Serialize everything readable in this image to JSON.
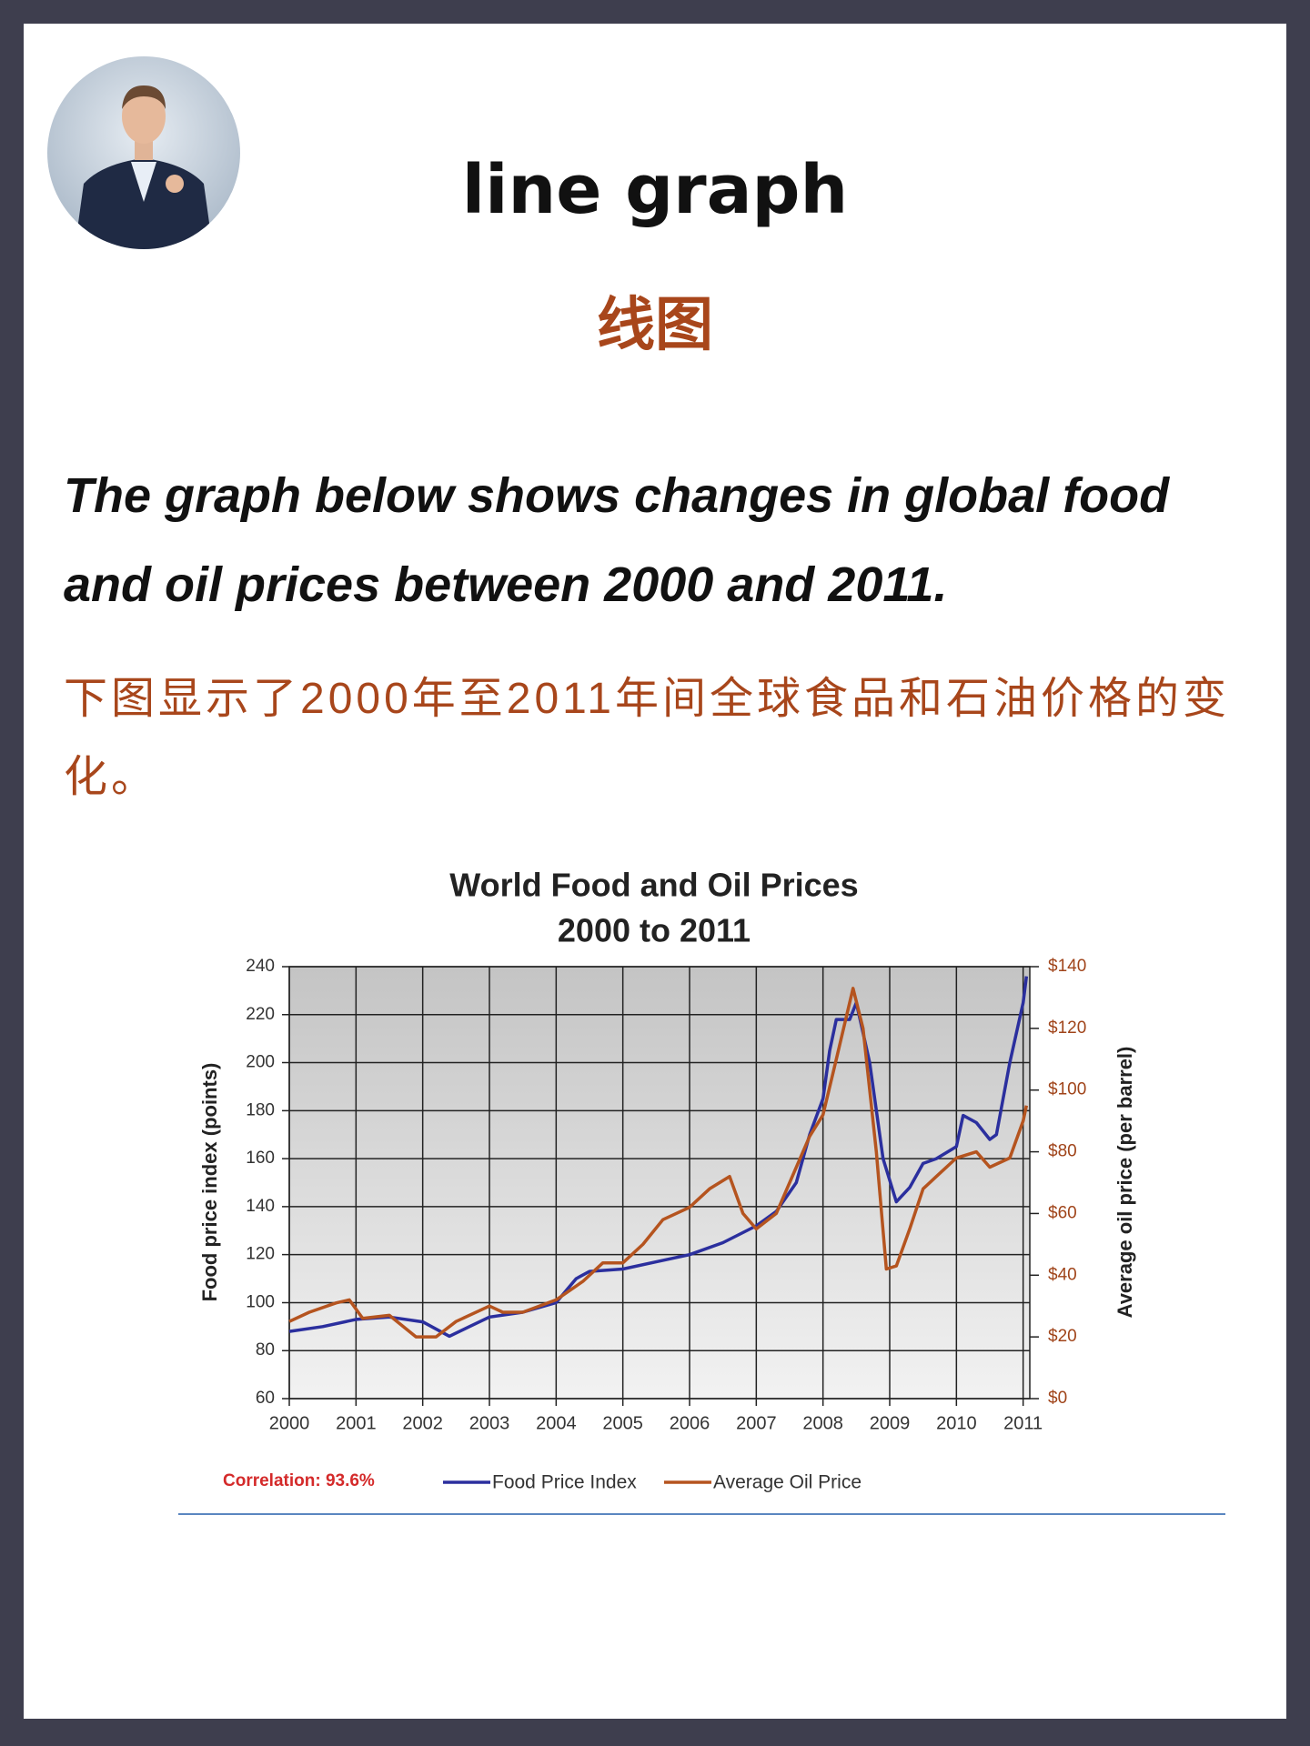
{
  "header": {
    "title": "line graph",
    "subtitle": "线图"
  },
  "intro": {
    "english": "The graph below shows changes in global food and oil prices between 2000 and 2011.",
    "chinese": "下图显示了2000年至2011年间全球食品和石油价格的变化。"
  },
  "chart_data": {
    "type": "line",
    "title": "World Food and Oil Prices",
    "subtitle": "2000 to 2011",
    "y_label": "Food price index (points)",
    "y2_label": "Average oil price (per barrel)",
    "annotation": "Correlation: 93.6%",
    "xlim": [
      2000,
      2011.1
    ],
    "xticks": [
      2000,
      2001,
      2002,
      2003,
      2004,
      2005,
      2006,
      2007,
      2008,
      2009,
      2010,
      2011
    ],
    "ylim": [
      60,
      240
    ],
    "yticks": [
      60,
      80,
      100,
      120,
      140,
      160,
      180,
      200,
      220,
      240
    ],
    "y2lim": [
      0,
      140
    ],
    "y2ticks": [
      {
        "value": 0,
        "label": "$0"
      },
      {
        "value": 20,
        "label": "$20"
      },
      {
        "value": 40,
        "label": "$40"
      },
      {
        "value": 60,
        "label": "$60"
      },
      {
        "value": 80,
        "label": "$80"
      },
      {
        "value": 100,
        "label": "$100"
      },
      {
        "value": 120,
        "label": "$120"
      },
      {
        "value": 140,
        "label": "$140"
      }
    ],
    "grid": true,
    "series": [
      {
        "name": "Food Price Index",
        "color": "#2b2f9e",
        "x": [
          2000,
          2000.5,
          2001,
          2001.5,
          2002,
          2002.4,
          2002.7,
          2003,
          2003.5,
          2004,
          2004.3,
          2004.5,
          2005,
          2005.5,
          2006,
          2006.5,
          2007,
          2007.3,
          2007.6,
          2007.8,
          2008,
          2008.1,
          2008.2,
          2008.4,
          2008.5,
          2008.7,
          2008.9,
          2009.1,
          2009.3,
          2009.5,
          2009.7,
          2010,
          2010.1,
          2010.3,
          2010.5,
          2010.6,
          2010.8,
          2011,
          2011.05
        ],
        "values": [
          88,
          90,
          93,
          94,
          92,
          86,
          90,
          94,
          96,
          100,
          110,
          113,
          114,
          117,
          120,
          125,
          132,
          138,
          150,
          170,
          185,
          205,
          218,
          218,
          225,
          200,
          160,
          142,
          148,
          158,
          160,
          165,
          178,
          175,
          168,
          170,
          200,
          225,
          236
        ]
      },
      {
        "name": "Average Oil Price",
        "color": "#b5541f",
        "axis": "y2",
        "x": [
          2000,
          2000.3,
          2000.7,
          2000.9,
          2001.1,
          2001.5,
          2001.9,
          2002.2,
          2002.5,
          2003,
          2003.2,
          2003.5,
          2004,
          2004.4,
          2004.7,
          2005,
          2005.3,
          2005.6,
          2005.8,
          2006,
          2006.3,
          2006.6,
          2006.8,
          2007,
          2007.3,
          2007.5,
          2007.8,
          2008,
          2008.2,
          2008.45,
          2008.6,
          2008.8,
          2008.95,
          2009.1,
          2009.3,
          2009.5,
          2009.7,
          2010,
          2010.3,
          2010.5,
          2010.8,
          2011,
          2011.05
        ],
        "values": [
          25,
          28,
          31,
          32,
          26,
          27,
          20,
          20,
          25,
          30,
          28,
          28,
          32,
          38,
          44,
          44,
          50,
          58,
          60,
          62,
          68,
          72,
          60,
          55,
          60,
          70,
          85,
          92,
          110,
          133,
          120,
          80,
          42,
          43,
          55,
          68,
          72,
          78,
          80,
          75,
          78,
          90,
          95
        ]
      }
    ]
  }
}
